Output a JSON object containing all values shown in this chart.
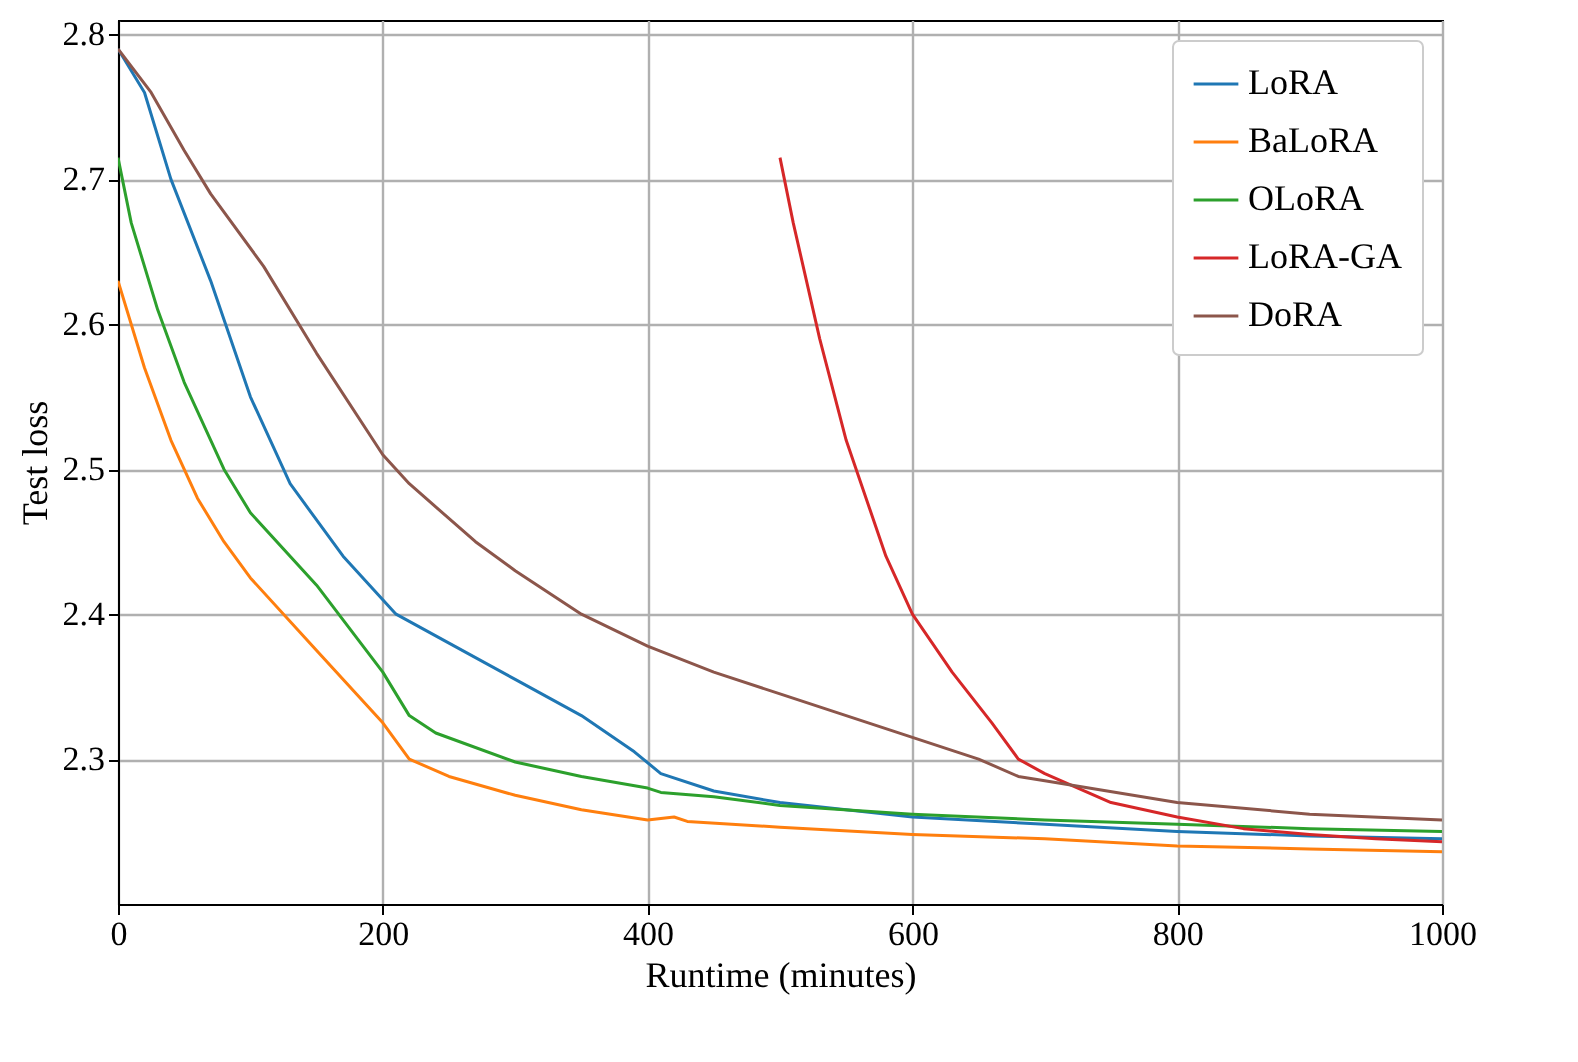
{
  "chart_data": {
    "type": "line",
    "xlabel": "Runtime (minutes)",
    "ylabel": "Test loss",
    "xlim": [
      0,
      1000
    ],
    "ylim": [
      2.2,
      2.81
    ],
    "xticks": [
      0,
      200,
      400,
      600,
      800,
      1000
    ],
    "yticks": [
      2.3,
      2.4,
      2.5,
      2.6,
      2.7,
      2.8
    ],
    "grid": true,
    "legend": "top right",
    "series": [
      {
        "name": "LoRA",
        "color": "#1f77b4",
        "x": [
          0,
          20,
          40,
          70,
          100,
          130,
          170,
          210,
          250,
          300,
          350,
          390,
          410,
          450,
          500,
          600,
          700,
          800,
          900,
          1000
        ],
        "values": [
          2.79,
          2.76,
          2.7,
          2.63,
          2.55,
          2.49,
          2.44,
          2.4,
          2.38,
          2.355,
          2.33,
          2.305,
          2.29,
          2.278,
          2.27,
          2.26,
          2.255,
          2.25,
          2.247,
          2.245
        ]
      },
      {
        "name": "BaLoRA",
        "color": "#ff7f0e",
        "x": [
          0,
          20,
          40,
          60,
          80,
          100,
          150,
          200,
          220,
          250,
          300,
          350,
          400,
          420,
          430,
          500,
          600,
          700,
          800,
          900,
          1000
        ],
        "values": [
          2.63,
          2.57,
          2.52,
          2.48,
          2.45,
          2.425,
          2.375,
          2.325,
          2.3,
          2.288,
          2.275,
          2.265,
          2.258,
          2.26,
          2.257,
          2.253,
          2.248,
          2.245,
          2.24,
          2.238,
          2.236
        ]
      },
      {
        "name": "OLoRA",
        "color": "#2ca02c",
        "x": [
          0,
          10,
          30,
          50,
          80,
          100,
          150,
          200,
          220,
          240,
          300,
          350,
          400,
          410,
          450,
          500,
          600,
          700,
          800,
          900,
          1000
        ],
        "values": [
          2.715,
          2.67,
          2.61,
          2.56,
          2.5,
          2.47,
          2.42,
          2.36,
          2.33,
          2.318,
          2.298,
          2.288,
          2.28,
          2.277,
          2.274,
          2.268,
          2.262,
          2.258,
          2.255,
          2.252,
          2.25
        ]
      },
      {
        "name": "LoRA-GA",
        "color": "#d62728",
        "x": [
          500,
          510,
          530,
          550,
          580,
          600,
          630,
          660,
          680,
          700,
          750,
          800,
          850,
          900,
          950,
          1000
        ],
        "values": [
          2.715,
          2.67,
          2.59,
          2.52,
          2.44,
          2.4,
          2.36,
          2.325,
          2.3,
          2.29,
          2.27,
          2.26,
          2.252,
          2.248,
          2.245,
          2.243
        ]
      },
      {
        "name": "DoRA",
        "color": "#8c564b",
        "x": [
          0,
          25,
          50,
          70,
          110,
          150,
          200,
          220,
          270,
          300,
          350,
          400,
          450,
          500,
          600,
          650,
          680,
          700,
          800,
          900,
          1000
        ],
        "values": [
          2.79,
          2.76,
          2.72,
          2.69,
          2.64,
          2.58,
          2.51,
          2.49,
          2.45,
          2.43,
          2.4,
          2.378,
          2.36,
          2.345,
          2.315,
          2.3,
          2.288,
          2.285,
          2.27,
          2.262,
          2.258
        ]
      }
    ]
  }
}
